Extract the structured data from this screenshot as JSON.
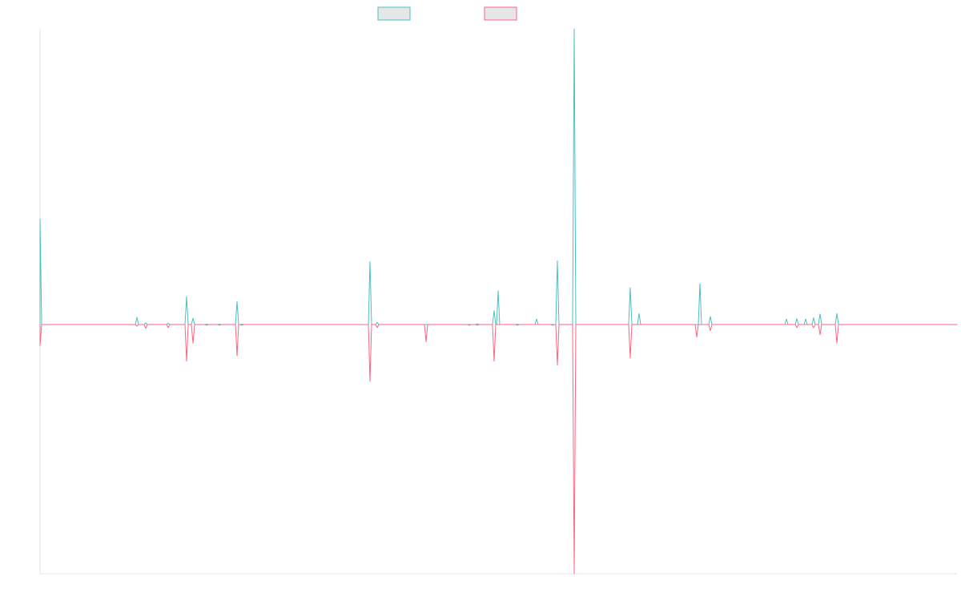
{
  "chart_data": {
    "type": "line",
    "title": "",
    "xlabel": "",
    "ylabel": "",
    "grid": false,
    "legend": "top-center",
    "xlim": [
      0,
      1145
    ],
    "ylim": [
      -320,
      700
    ],
    "series": [
      {
        "color": "#4bc0c0",
        "baseline": 0,
        "spikes": [
          [
            0,
            250
          ],
          [
            121,
            17
          ],
          [
            132,
            4
          ],
          [
            160,
            3
          ],
          [
            183,
            66
          ],
          [
            191,
            15
          ],
          [
            208,
            1
          ],
          [
            224,
            1
          ],
          [
            246,
            54
          ],
          [
            252,
            1
          ],
          [
            412,
            149
          ],
          [
            421,
            5
          ],
          [
            546,
            2
          ],
          [
            567,
            33
          ],
          [
            572,
            80
          ],
          [
            596,
            1
          ],
          [
            620,
            13
          ],
          [
            646,
            151
          ],
          [
            667,
            700
          ],
          [
            737,
            87
          ],
          [
            748,
            26
          ],
          [
            824,
            97
          ],
          [
            837,
            19
          ],
          [
            932,
            13
          ],
          [
            945,
            14
          ],
          [
            956,
            13
          ],
          [
            966,
            16
          ],
          [
            974,
            25
          ],
          [
            995,
            26
          ]
        ]
      },
      {
        "color": "#ff6384",
        "baseline": 0,
        "spikes": [
          [
            0,
            -27
          ],
          [
            121,
            -2
          ],
          [
            132,
            -5
          ],
          [
            160,
            -4
          ],
          [
            183,
            -47
          ],
          [
            191,
            -24
          ],
          [
            208,
            -1
          ],
          [
            224,
            -1
          ],
          [
            246,
            -40
          ],
          [
            252,
            -1
          ],
          [
            412,
            -73
          ],
          [
            421,
            -4
          ],
          [
            482,
            -22
          ],
          [
            536,
            -1
          ],
          [
            546,
            -1
          ],
          [
            567,
            -47
          ],
          [
            596,
            -1
          ],
          [
            640,
            -1
          ],
          [
            646,
            -52
          ],
          [
            667,
            -320
          ],
          [
            737,
            -43
          ],
          [
            820,
            -16
          ],
          [
            837,
            -8
          ],
          [
            945,
            -4
          ],
          [
            966,
            -4
          ],
          [
            974,
            -13
          ],
          [
            995,
            -24
          ]
        ]
      }
    ]
  }
}
